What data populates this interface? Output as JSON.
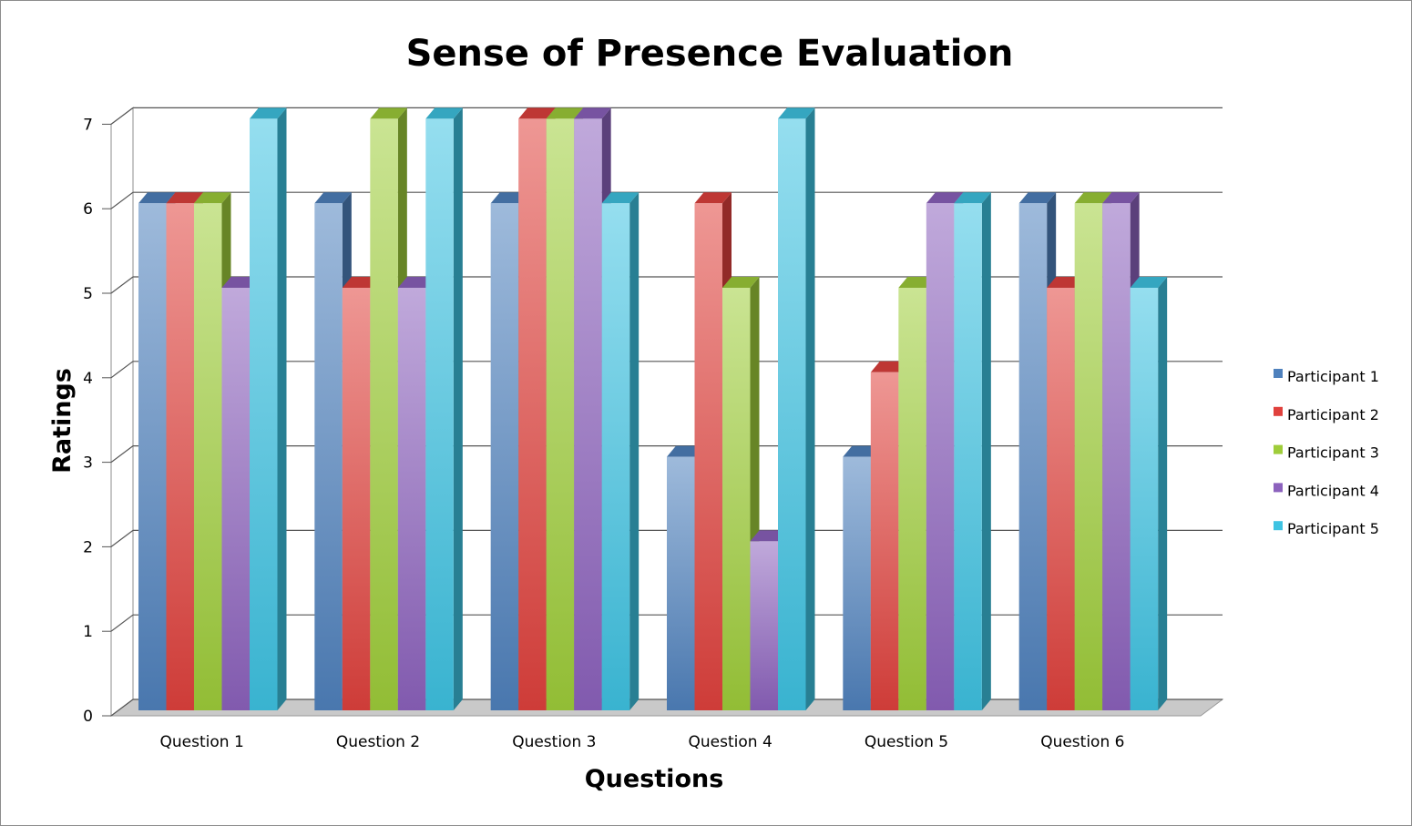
{
  "chart_data": {
    "type": "bar",
    "style": "3d-clustered-column",
    "title": "Sense of Presence Evaluation",
    "xlabel": "Questions",
    "ylabel": "Ratings",
    "ylim": [
      0,
      7
    ],
    "yticks": [
      "0",
      "1",
      "2",
      "3",
      "4",
      "5",
      "6",
      "7"
    ],
    "grid": true,
    "legend_position": "right",
    "categories": [
      "Question 1",
      "Question 2",
      "Question 3",
      "Question 4",
      "Question 5",
      "Question 6"
    ],
    "series": [
      {
        "name": "Participant 1",
        "color": "#4f81bd",
        "values": [
          6,
          6,
          6,
          3,
          3,
          6
        ]
      },
      {
        "name": "Participant 2",
        "color": "#e0413d",
        "values": [
          6,
          5,
          7,
          6,
          4,
          5
        ]
      },
      {
        "name": "Participant 3",
        "color": "#9fcd3a",
        "values": [
          6,
          7,
          7,
          5,
          5,
          6
        ]
      },
      {
        "name": "Participant 4",
        "color": "#8c62bd",
        "values": [
          5,
          5,
          7,
          2,
          6,
          6
        ]
      },
      {
        "name": "Participant 5",
        "color": "#3ec3e2",
        "values": [
          7,
          7,
          6,
          7,
          6,
          5
        ]
      }
    ]
  }
}
